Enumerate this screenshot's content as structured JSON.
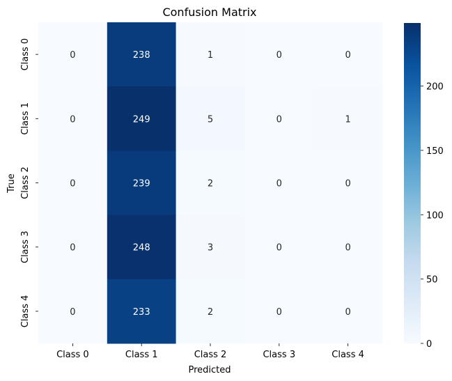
{
  "chart_data": {
    "type": "heatmap",
    "title": "Confusion Matrix",
    "xlabel": "Predicted",
    "ylabel": "True",
    "x_categories": [
      "Class 0",
      "Class 1",
      "Class 2",
      "Class 3",
      "Class 4"
    ],
    "y_categories": [
      "Class 0",
      "Class 1",
      "Class 2",
      "Class 3",
      "Class 4"
    ],
    "values": [
      [
        0,
        238,
        1,
        0,
        0
      ],
      [
        0,
        249,
        5,
        0,
        1
      ],
      [
        0,
        239,
        2,
        0,
        0
      ],
      [
        0,
        248,
        3,
        0,
        0
      ],
      [
        0,
        233,
        2,
        0,
        0
      ]
    ],
    "colormap": "Blues",
    "colorbar": {
      "min": 0,
      "max": 249,
      "ticks": [
        0,
        50,
        100,
        150,
        200
      ]
    },
    "grid": false
  }
}
